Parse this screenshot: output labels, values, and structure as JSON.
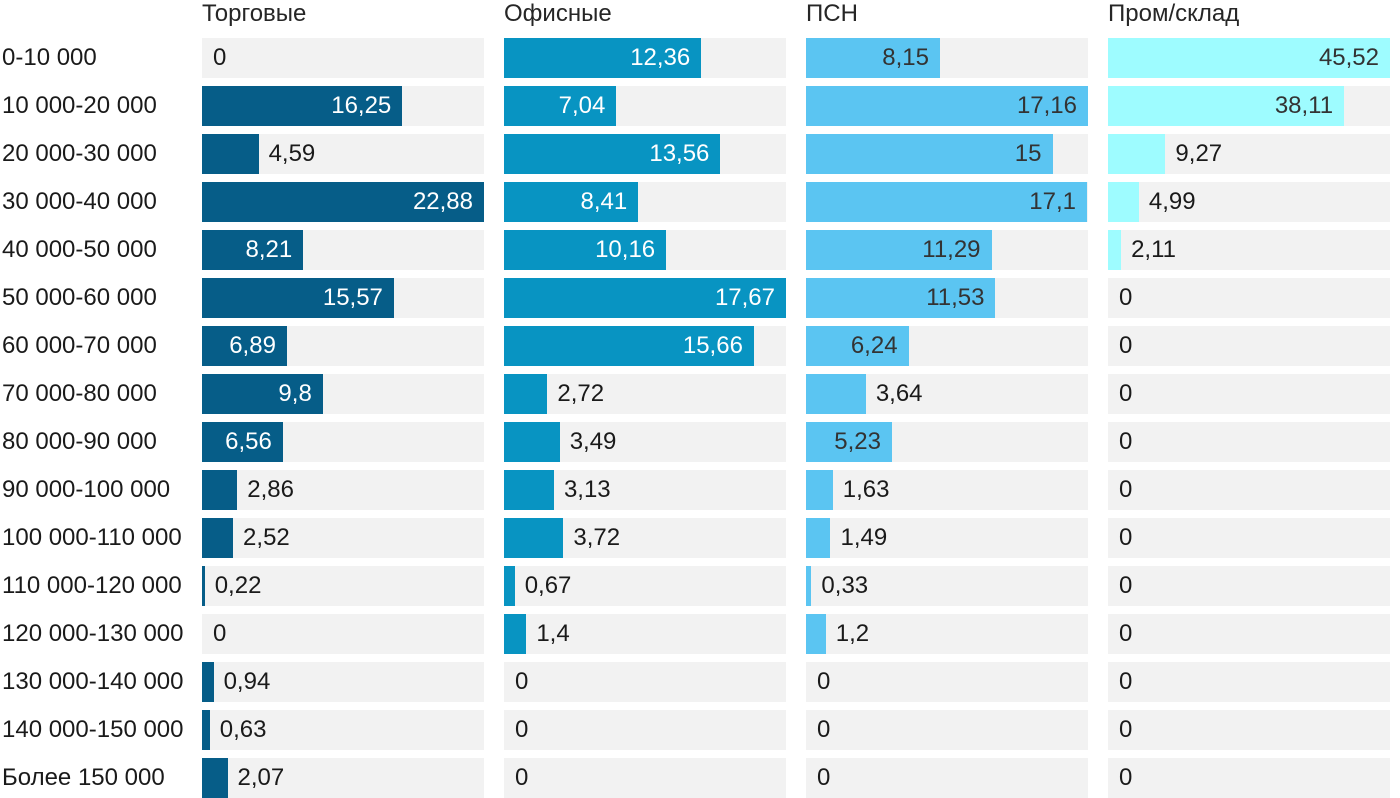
{
  "chart_data": {
    "type": "bar",
    "orientation": "horizontal",
    "scaling": "each column scaled to its own maximum",
    "grid": false,
    "legend": false,
    "track_color": "#f2f2f2",
    "decimal_separator": ",",
    "categories": [
      "0-10 000",
      "10 000-20 000",
      "20 000-30 000",
      "30 000-40 000",
      "40 000-50 000",
      "50 000-60 000",
      "60 000-70 000",
      "70 000-80 000",
      "80 000-90 000",
      "90 000-100 000",
      "100 000-110 000",
      "110 000-120 000",
      "120 000-130 000",
      "130 000-140 000",
      "140 000-150 000",
      "Более 150 000"
    ],
    "series": [
      {
        "name": "Торговые",
        "color": "#065d88",
        "label_color_inside": "#ffffff",
        "values": [
          0,
          16.25,
          4.59,
          22.88,
          8.21,
          15.57,
          6.89,
          9.8,
          6.56,
          2.86,
          2.52,
          0.22,
          0,
          0.94,
          0.63,
          2.07
        ],
        "labels": [
          "0",
          "16,25",
          "4,59",
          "22,88",
          "8,21",
          "15,57",
          "6,89",
          "9,8",
          "6,56",
          "2,86",
          "2,52",
          "0,22",
          "0",
          "0,94",
          "0,63",
          "2,07"
        ]
      },
      {
        "name": "Офисные",
        "color": "#0894c2",
        "label_color_inside": "#ffffff",
        "values": [
          12.36,
          7.04,
          13.56,
          8.41,
          10.16,
          17.67,
          15.66,
          2.72,
          3.49,
          3.13,
          3.72,
          0.67,
          1.4,
          0,
          0,
          0
        ],
        "labels": [
          "12,36",
          "7,04",
          "13,56",
          "8,41",
          "10,16",
          "17,67",
          "15,66",
          "2,72",
          "3,49",
          "3,13",
          "3,72",
          "0,67",
          "1,4",
          "0",
          "0",
          "0"
        ]
      },
      {
        "name": "ПСН",
        "color": "#5bc5f2",
        "label_color_inside": "#333333",
        "values": [
          8.15,
          17.16,
          15,
          17.1,
          11.29,
          11.53,
          6.24,
          3.64,
          5.23,
          1.63,
          1.49,
          0.33,
          1.2,
          0,
          0,
          0
        ],
        "labels": [
          "8,15",
          "17,16",
          "15",
          "17,1",
          "11,29",
          "11,53",
          "6,24",
          "3,64",
          "5,23",
          "1,63",
          "1,49",
          "0,33",
          "1,2",
          "0",
          "0",
          "0"
        ]
      },
      {
        "name": "Пром/склад",
        "color": "#9efcff",
        "label_color_inside": "#333333",
        "values": [
          45.52,
          38.11,
          9.27,
          4.99,
          2.11,
          0,
          0,
          0,
          0,
          0,
          0,
          0,
          0,
          0,
          0,
          0
        ],
        "labels": [
          "45,52",
          "38,11",
          "9,27",
          "4,99",
          "2,11",
          "0",
          "0",
          "0",
          "0",
          "0",
          "0",
          "0",
          "0",
          "0",
          "0",
          "0"
        ]
      }
    ],
    "label_color_outside": "#1a1a1a",
    "header_color": "#262626"
  }
}
